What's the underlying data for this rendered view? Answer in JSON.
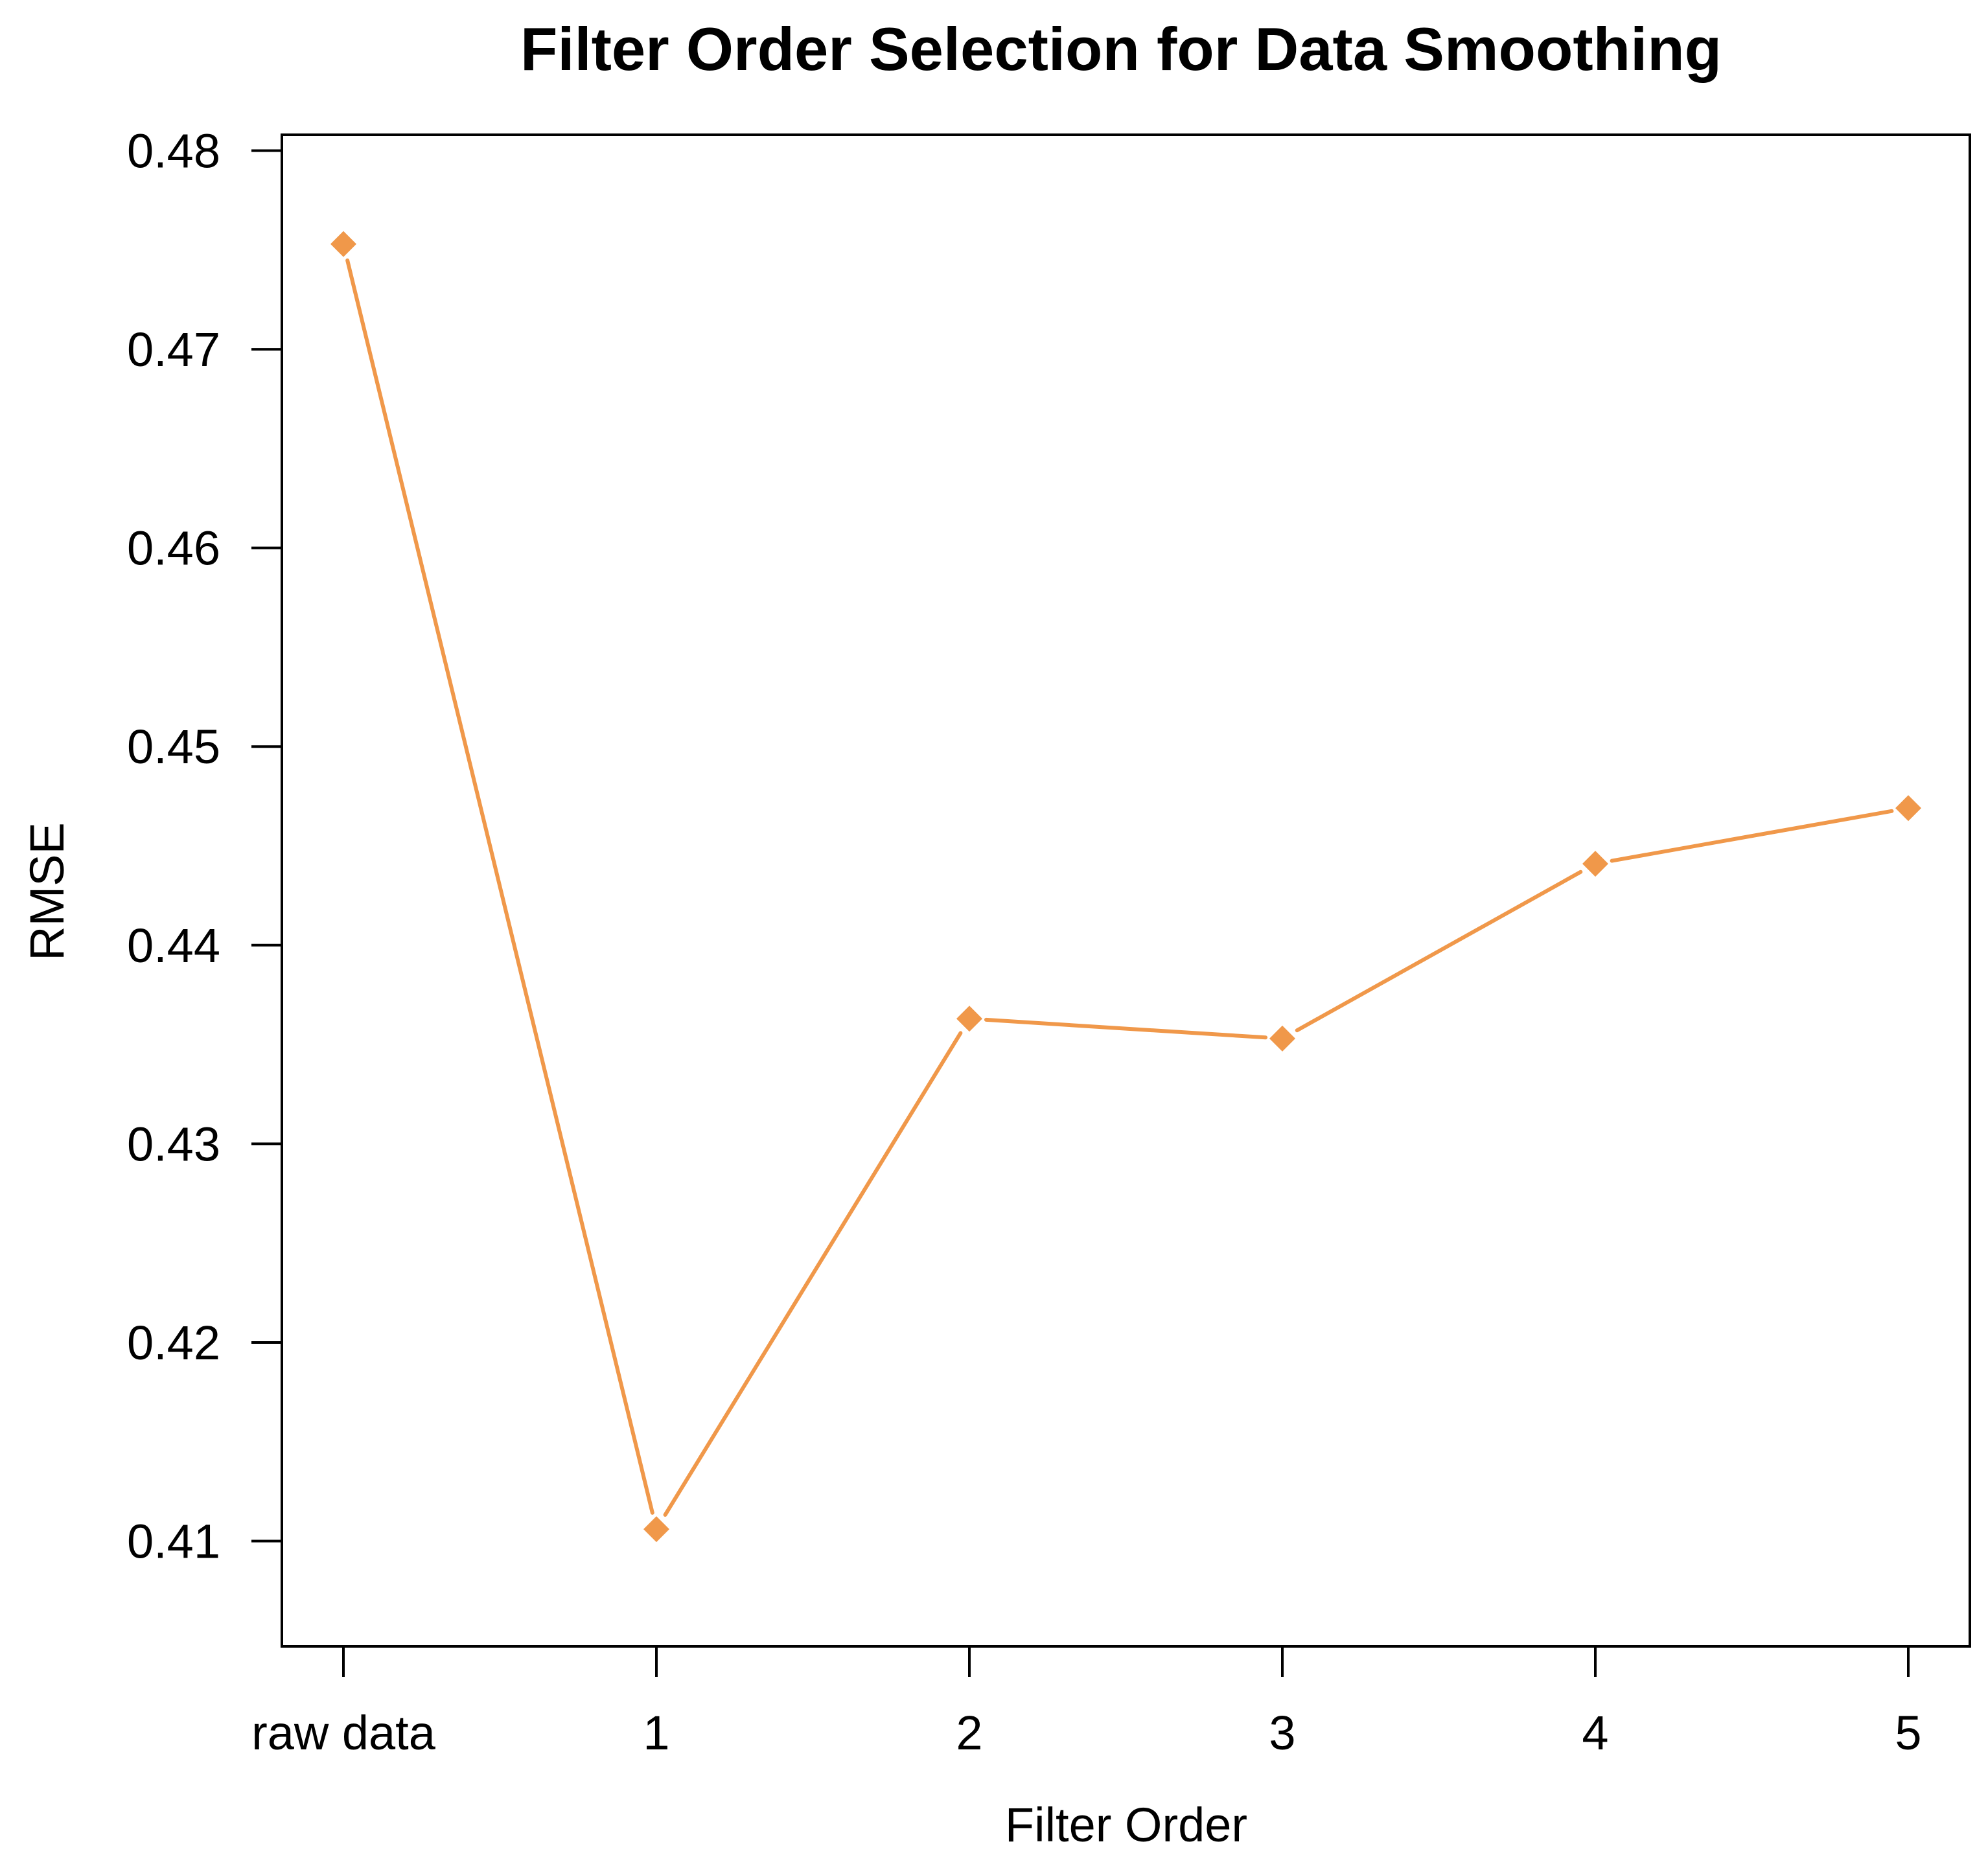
{
  "chart_data": {
    "type": "line",
    "title": "Filter Order Selection for Data Smoothing",
    "xlabel": "Filter Order",
    "ylabel": "RMSE",
    "categories": [
      "raw data",
      "1",
      "2",
      "3",
      "4",
      "5"
    ],
    "series": [
      {
        "values": [
          0.4753,
          0.4106,
          0.4363,
          0.4353,
          0.4441,
          0.4469
        ],
        "color": "#f0984a",
        "marker": "diamond"
      }
    ],
    "y_ticks": [
      0.41,
      0.42,
      0.43,
      0.44,
      0.45,
      0.46,
      0.47,
      0.48
    ],
    "y_tick_labels": [
      "0.41",
      "0.42",
      "0.43",
      "0.44",
      "0.45",
      "0.46",
      "0.47",
      "0.48"
    ],
    "ylim": [
      0.4047,
      0.4808
    ],
    "grid": false,
    "legend": "none"
  }
}
